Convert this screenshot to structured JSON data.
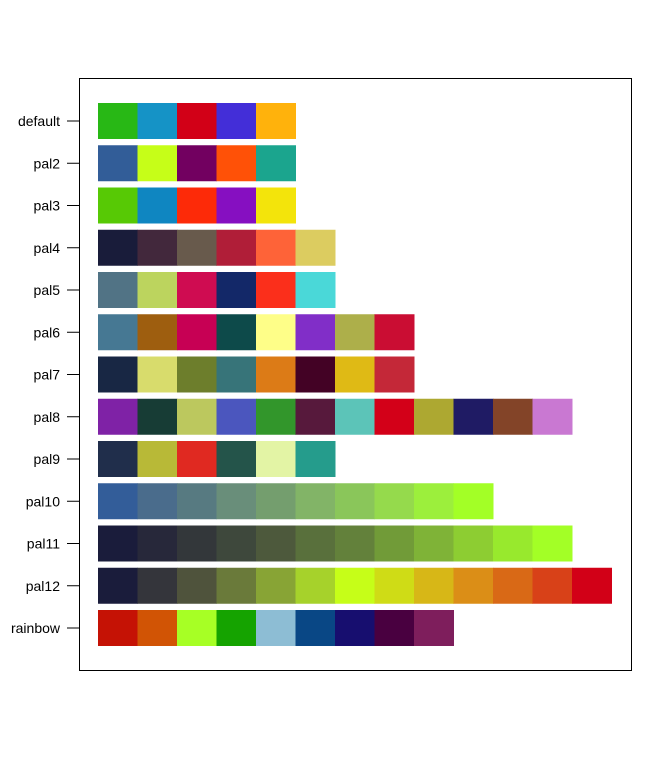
{
  "chart_data": {
    "type": "heatmap",
    "title": "",
    "xlabel": "",
    "ylabel": "",
    "grid": false,
    "categories": [
      "default",
      "pal2",
      "pal3",
      "pal4",
      "pal5",
      "pal6",
      "pal7",
      "pal8",
      "pal9",
      "pal10",
      "pal11",
      "pal12",
      "rainbow"
    ],
    "palettes": [
      {
        "name": "default",
        "colors": [
          "#28b815",
          "#1593c6",
          "#d20017",
          "#432ed8",
          "#ffb20c"
        ]
      },
      {
        "name": "pal2",
        "colors": [
          "#325d98",
          "#c6fe18",
          "#720060",
          "#ff5107",
          "#1ba58e"
        ]
      },
      {
        "name": "pal3",
        "colors": [
          "#57c905",
          "#0f86c1",
          "#fd2a08",
          "#860fc1",
          "#f3e40b"
        ]
      },
      {
        "name": "pal4",
        "colors": [
          "#191c3a",
          "#42283c",
          "#685a4c",
          "#b01e38",
          "#fe6338",
          "#dccc60"
        ]
      },
      {
        "name": "pal5",
        "colors": [
          "#517385",
          "#bcd45e",
          "#cf0c51",
          "#132868",
          "#fb2f1b",
          "#4ad8d8"
        ]
      },
      {
        "name": "pal6",
        "colors": [
          "#467893",
          "#9e5e0f",
          "#c70054",
          "#0d4a4a",
          "#fefe88",
          "#812ec8",
          "#adaf4a",
          "#ca0d33"
        ]
      },
      {
        "name": "pal7",
        "colors": [
          "#182744",
          "#d8dc6c",
          "#6d7e2c",
          "#377479",
          "#dc7b17",
          "#430225",
          "#dfba15",
          "#c42838"
        ]
      },
      {
        "name": "pal8",
        "colors": [
          "#7f22a6",
          "#173c35",
          "#bcc85e",
          "#4b56be",
          "#32962b",
          "#57193c",
          "#5cc4b8",
          "#d30018",
          "#ada831",
          "#1f1b64",
          "#834428",
          "#c978d2"
        ]
      },
      {
        "name": "pal9",
        "colors": [
          "#202e4b",
          "#b8b937",
          "#e02921",
          "#24544a",
          "#e3f4a5",
          "#259c8c"
        ]
      },
      {
        "name": "pal10",
        "colors": [
          "#335d99",
          "#4a6c8c",
          "#577a81",
          "#698e7a",
          "#749e6e",
          "#82b467",
          "#8ac65a",
          "#95da4c",
          "#9cef3c",
          "#a3ff26"
        ]
      },
      {
        "name": "pal11",
        "colors": [
          "#1a1c3b",
          "#27283a",
          "#33373a",
          "#3e483c",
          "#4d593c",
          "#59703c",
          "#63813b",
          "#719b38",
          "#7fb337",
          "#8dcd32",
          "#98e92d",
          "#a3ff26"
        ]
      },
      {
        "name": "pal12",
        "colors": [
          "#1a1c3b",
          "#34353b",
          "#4f533c",
          "#6a7a3a",
          "#88a435",
          "#a6d22b",
          "#c6fe18",
          "#cfdc16",
          "#d7b717",
          "#db8e17",
          "#d96916",
          "#d84118",
          "#d20017"
        ]
      },
      {
        "name": "rainbow",
        "colors": [
          "#c51205",
          "#d15405",
          "#a7ff25",
          "#15a300",
          "#8dbdd4",
          "#094785",
          "#170e6f",
          "#490040",
          "#7e1e5c"
        ]
      }
    ]
  }
}
